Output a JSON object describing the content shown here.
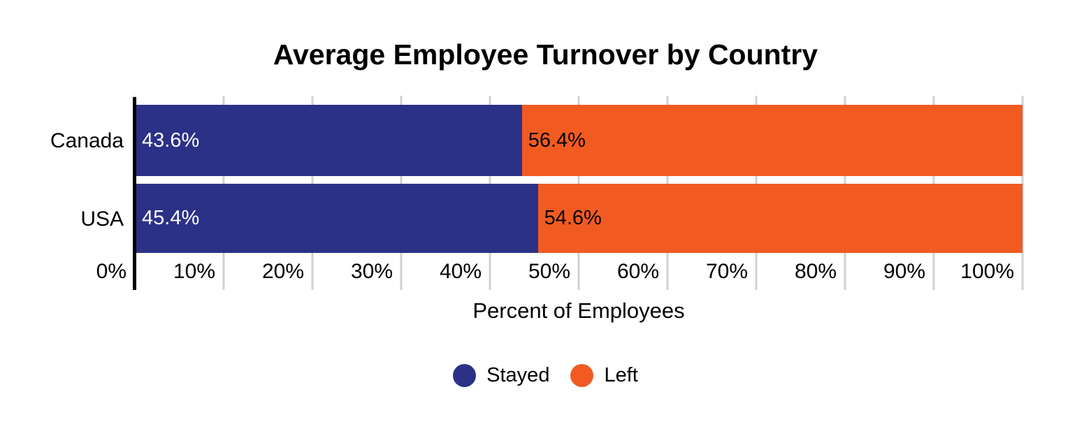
{
  "title": "Average Employee Turnover by Country",
  "chart_data": {
    "type": "bar",
    "orientation": "horizontal",
    "stacked": true,
    "title": "Average Employee Turnover by Country",
    "categories": [
      "Canada",
      "USA"
    ],
    "series": [
      {
        "name": "Stayed",
        "color": "#2B3186",
        "values": [
          43.6,
          45.4
        ],
        "labels": [
          "43.6%",
          "45.4%"
        ]
      },
      {
        "name": "Left",
        "color": "#F15B22",
        "values": [
          56.4,
          54.6
        ],
        "labels": [
          "56.4%",
          "54.6%"
        ]
      }
    ],
    "xlabel": "Percent of Employees",
    "ylabel": "",
    "xlim": [
      0,
      100
    ],
    "x_ticks": [
      "0%",
      "10%",
      "20%",
      "30%",
      "40%",
      "50%",
      "60%",
      "70%",
      "80%",
      "90%",
      "100%"
    ],
    "grid": true,
    "gridline_color": "#D1D1D1",
    "axis_line_color": "#000000",
    "legend_position": "bottom"
  },
  "legend": {
    "items": [
      {
        "label": "Stayed",
        "color": "#2B3186"
      },
      {
        "label": "Left",
        "color": "#F15B22"
      }
    ]
  }
}
